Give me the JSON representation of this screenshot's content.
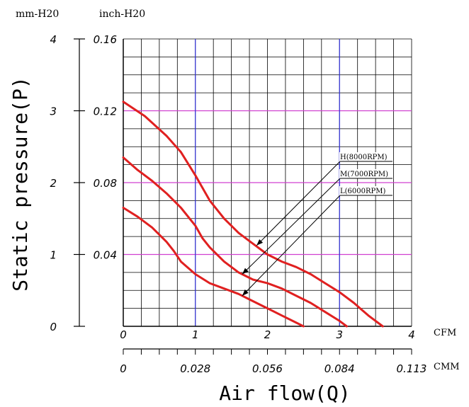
{
  "chart_data": {
    "type": "line",
    "units": {
      "mm": "mm-H20",
      "inch": "inch-H20",
      "cfm": "CFM",
      "cmm": "CMM"
    },
    "xlabel": "Air flow(Q)",
    "ylabel": "Static pressure(P)",
    "xlim": [
      0,
      4
    ],
    "ylim_inch": [
      0,
      0.16
    ],
    "x_cfm_ticks": [
      "0",
      "1",
      "2",
      "3",
      "4"
    ],
    "x_cmm_ticks": [
      "0",
      "0.028",
      "0.056",
      "0.084",
      "0.113"
    ],
    "y_mm_ticks": [
      "0",
      "1",
      "2",
      "3",
      "4"
    ],
    "y_inch_ticks": [
      "",
      "0.04",
      "0.08",
      "0.12",
      "0.16"
    ],
    "series": [
      {
        "name": "H(8000RPM)",
        "color": "#e02020",
        "x": [
          0,
          0.3,
          0.6,
          0.8,
          1.0,
          1.2,
          1.4,
          1.6,
          1.8,
          2.0,
          2.2,
          2.4,
          2.6,
          2.8,
          3.0,
          3.2,
          3.4,
          3.6
        ],
        "y": [
          0.125,
          0.117,
          0.106,
          0.097,
          0.084,
          0.07,
          0.06,
          0.052,
          0.046,
          0.04,
          0.036,
          0.033,
          0.029,
          0.024,
          0.019,
          0.013,
          0.006,
          0
        ]
      },
      {
        "name": "M(7000RPM)",
        "color": "#e02020",
        "x": [
          0,
          0.2,
          0.4,
          0.6,
          0.8,
          1.0,
          1.1,
          1.2,
          1.4,
          1.6,
          1.8,
          2.0,
          2.2,
          2.4,
          2.6,
          2.8,
          3.0,
          3.1
        ],
        "y": [
          0.094,
          0.087,
          0.081,
          0.074,
          0.066,
          0.056,
          0.049,
          0.044,
          0.036,
          0.03,
          0.026,
          0.024,
          0.021,
          0.017,
          0.013,
          0.008,
          0.003,
          0
        ]
      },
      {
        "name": "L(6000RPM)",
        "color": "#e02020",
        "x": [
          0,
          0.2,
          0.4,
          0.6,
          0.7,
          0.8,
          1.0,
          1.2,
          1.4,
          1.6,
          1.8,
          2.0,
          2.2,
          2.4,
          2.5
        ],
        "y": [
          0.066,
          0.061,
          0.055,
          0.047,
          0.042,
          0.036,
          0.029,
          0.024,
          0.021,
          0.018,
          0.014,
          0.01,
          0.006,
          0.002,
          0
        ]
      }
    ],
    "annotations": [
      {
        "text": "H(8000RPM)",
        "target": [
          1.85,
          0.045
        ]
      },
      {
        "text": "M(7000RPM)",
        "target": [
          1.65,
          0.029
        ]
      },
      {
        "text": "L(6000RPM)",
        "target": [
          1.65,
          0.017
        ]
      }
    ],
    "grid": true,
    "highlight_lines": {
      "vertical_x": [
        1,
        3
      ],
      "vertical_color": "#3333dd",
      "horizontal_y": [
        0.04,
        0.08,
        0.12
      ],
      "horizontal_color": "#d040d0"
    }
  }
}
